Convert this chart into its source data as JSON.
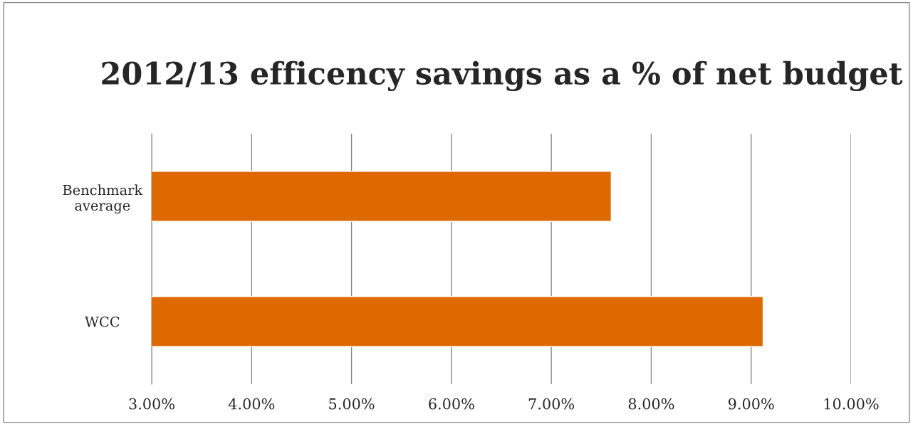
{
  "chart_data": {
    "type": "bar",
    "orientation": "horizontal",
    "title": "2012/13 efficency savings as a % of net budget",
    "categories": [
      "Benchmark average",
      "WCC"
    ],
    "values": [
      7.6,
      9.12
    ],
    "color": "#dd6900",
    "xlim": [
      3,
      10
    ],
    "xticks": [
      {
        "value": 3,
        "label": "3.00%"
      },
      {
        "value": 4,
        "label": "4.00%"
      },
      {
        "value": 5,
        "label": "5.00%"
      },
      {
        "value": 6,
        "label": "6.00%"
      },
      {
        "value": 7,
        "label": "7.00%"
      },
      {
        "value": 8,
        "label": "8.00%"
      },
      {
        "value": 9,
        "label": "9.00%"
      },
      {
        "value": 10,
        "label": "10.00%"
      }
    ],
    "grid": "x",
    "legend": false
  }
}
